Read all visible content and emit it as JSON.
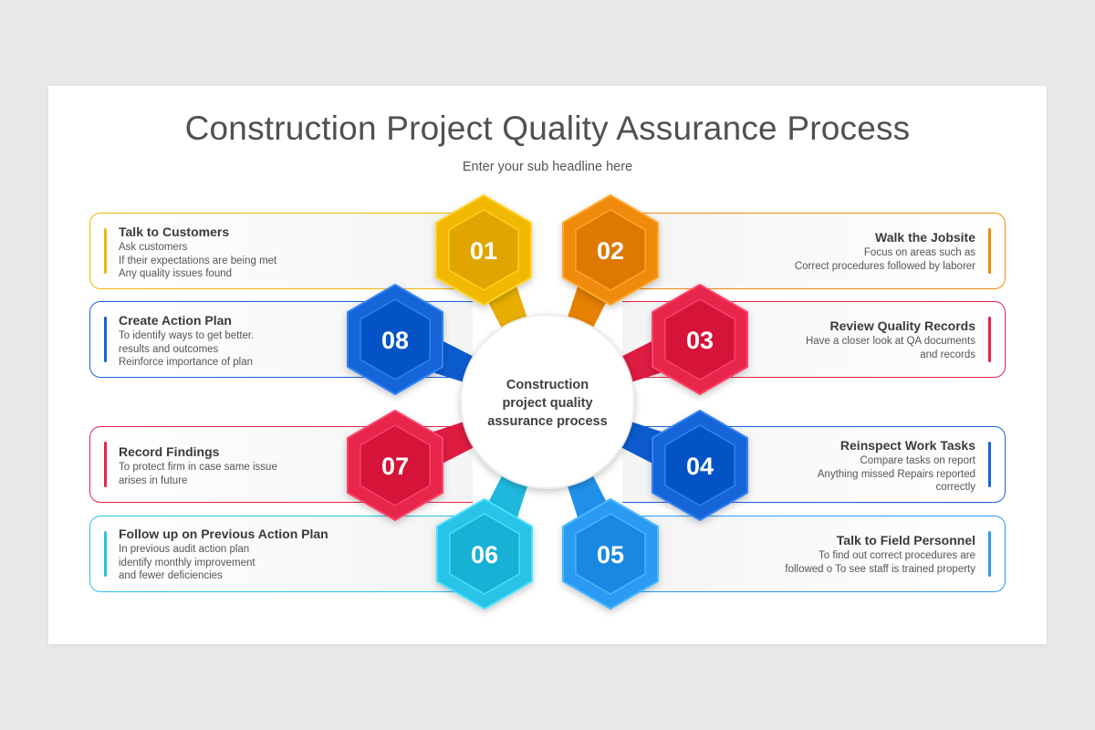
{
  "title": "Construction Project Quality Assurance Process",
  "subtitle": "Enter your sub headline here",
  "center_text": [
    "Construction",
    "project quality",
    "assurance process"
  ],
  "steps": [
    {
      "num": "01",
      "color": "#f2b705",
      "heading": "Talk to Customers",
      "lines": [
        "Ask customers",
        "If their expectations are being met",
        "Any quality issues found"
      ]
    },
    {
      "num": "02",
      "color": "#f08a0b",
      "heading": "Walk the Jobsite",
      "lines": [
        "Focus on areas such as",
        "Correct procedures followed by laborer"
      ]
    },
    {
      "num": "03",
      "color": "#e8254b",
      "heading": "Review Quality Records",
      "lines": [
        "Have a closer look at QA documents",
        "and records"
      ]
    },
    {
      "num": "04",
      "color": "#1565d8",
      "heading": "Reinspect Work Tasks",
      "lines": [
        "Compare tasks on report",
        "Anything missed Repairs reported",
        "correctly"
      ]
    },
    {
      "num": "05",
      "color": "#2b9af3",
      "heading": "Talk to Field Personnel",
      "lines": [
        "To find out correct procedures are",
        "followed o To see staff is trained property"
      ]
    },
    {
      "num": "06",
      "color": "#29c3e8",
      "heading": "Follow up on Previous Action Plan",
      "lines": [
        "In previous audit action plan",
        "identify monthly improvement",
        "and fewer deficiencies"
      ]
    },
    {
      "num": "07",
      "color": "#e8254b",
      "heading": "Record Findings",
      "lines": [
        "To protect firm in case same issue",
        "arises in future"
      ]
    },
    {
      "num": "08",
      "color": "#1565d8",
      "heading": "Create Action Plan",
      "lines": [
        "To identify ways to get better.",
        "results and outcomes",
        "Reinforce importance of plan"
      ]
    }
  ]
}
